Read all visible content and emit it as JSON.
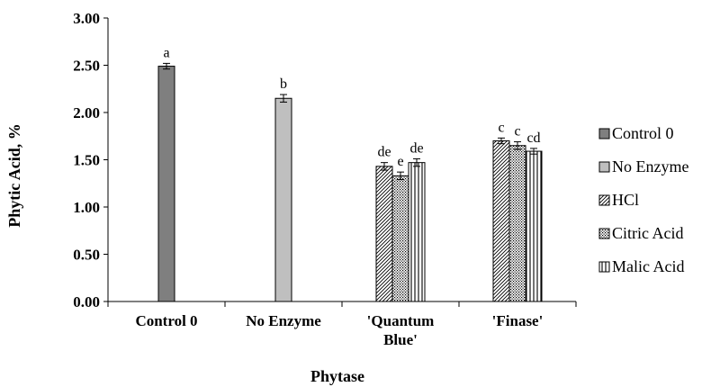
{
  "chart_data": {
    "type": "bar",
    "title": "",
    "xlabel": "Phytase",
    "ylabel": "Phytic Acid, %",
    "ylim": [
      0,
      3.0
    ],
    "yticks": [
      "0.00",
      "0.50",
      "1.00",
      "1.50",
      "2.00",
      "2.50",
      "3.00"
    ],
    "categories": [
      {
        "lines": [
          "Control 0"
        ]
      },
      {
        "lines": [
          "No Enzyme"
        ]
      },
      {
        "lines": [
          "'Quantum",
          "Blue'"
        ]
      },
      {
        "lines": [
          "'Finase'"
        ]
      }
    ],
    "legend_position": "right",
    "series": [
      {
        "name": "Control 0",
        "pattern": "solid-dark",
        "color": "#7f7f7f",
        "values": [
          2.49,
          null,
          null,
          null
        ],
        "errors": [
          0.03,
          null,
          null,
          null
        ],
        "labels": [
          "a",
          null,
          null,
          null
        ]
      },
      {
        "name": "No Enzyme",
        "pattern": "solid-light",
        "color": "#bfbfbf",
        "values": [
          null,
          2.15,
          null,
          null
        ],
        "errors": [
          null,
          0.04,
          null,
          null
        ],
        "labels": [
          null,
          "b",
          null,
          null
        ]
      },
      {
        "name": "HCl",
        "pattern": "diagonal-hatch",
        "color": "#000000",
        "values": [
          null,
          null,
          1.43,
          1.7
        ],
        "errors": [
          null,
          null,
          0.04,
          0.03
        ],
        "labels": [
          null,
          null,
          "de",
          "c"
        ]
      },
      {
        "name": "Citric Acid",
        "pattern": "dots",
        "color": "#000000",
        "values": [
          null,
          null,
          1.33,
          1.65
        ],
        "errors": [
          null,
          null,
          0.04,
          0.04
        ],
        "labels": [
          null,
          null,
          "e",
          "c"
        ]
      },
      {
        "name": "Malic Acid",
        "pattern": "vertical-lines",
        "color": "#000000",
        "values": [
          null,
          null,
          1.47,
          1.59
        ],
        "errors": [
          null,
          null,
          0.04,
          0.03
        ],
        "labels": [
          null,
          null,
          "de",
          "cd"
        ]
      }
    ]
  }
}
